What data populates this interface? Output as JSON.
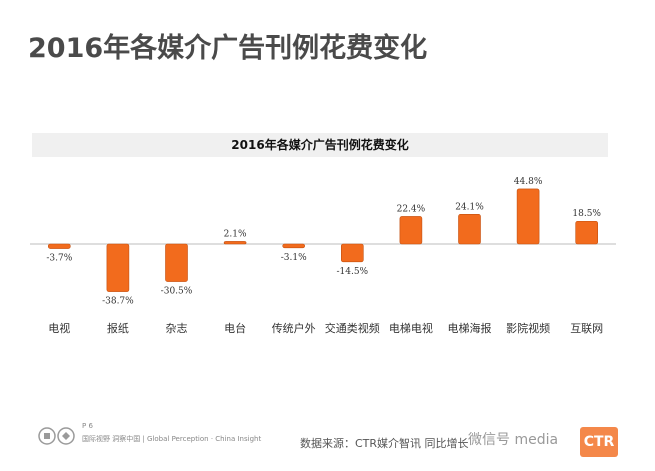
{
  "page": {
    "title": "2016年各媒介广告刊例花费变化"
  },
  "footer": {
    "page_number": "P 6",
    "tagline": "国际视野 洞察中国 | Global Perception · China Insight",
    "source": "数据来源：CTR媒介智讯   同比增长",
    "wechat": "微信号 media",
    "logo_text": "CTR"
  },
  "colors": {
    "bar": "#f26b1d",
    "bar_stroke": "#c24f0f",
    "axis": "#bdbdbd"
  },
  "chart_data": {
    "type": "bar",
    "title": "2016年各媒介广告刊例花费变化",
    "categories": [
      "电视",
      "报纸",
      "杂志",
      "电台",
      "传统户外",
      "交通类视频",
      "电梯电视",
      "电梯海报",
      "影院视频",
      "互联网"
    ],
    "values": [
      -3.7,
      -38.7,
      -30.5,
      2.1,
      -3.1,
      -14.5,
      22.4,
      24.1,
      44.8,
      18.5
    ],
    "data_labels": [
      "-3.7%",
      "-38.7%",
      "-30.5%",
      "2.1%",
      "-3.1%",
      "-14.5%",
      "22.4%",
      "24.1%",
      "44.8%",
      "18.5%"
    ],
    "xlabel": "",
    "ylabel": "",
    "ylim": [
      -45,
      50
    ],
    "grid": false,
    "legend": "none"
  }
}
